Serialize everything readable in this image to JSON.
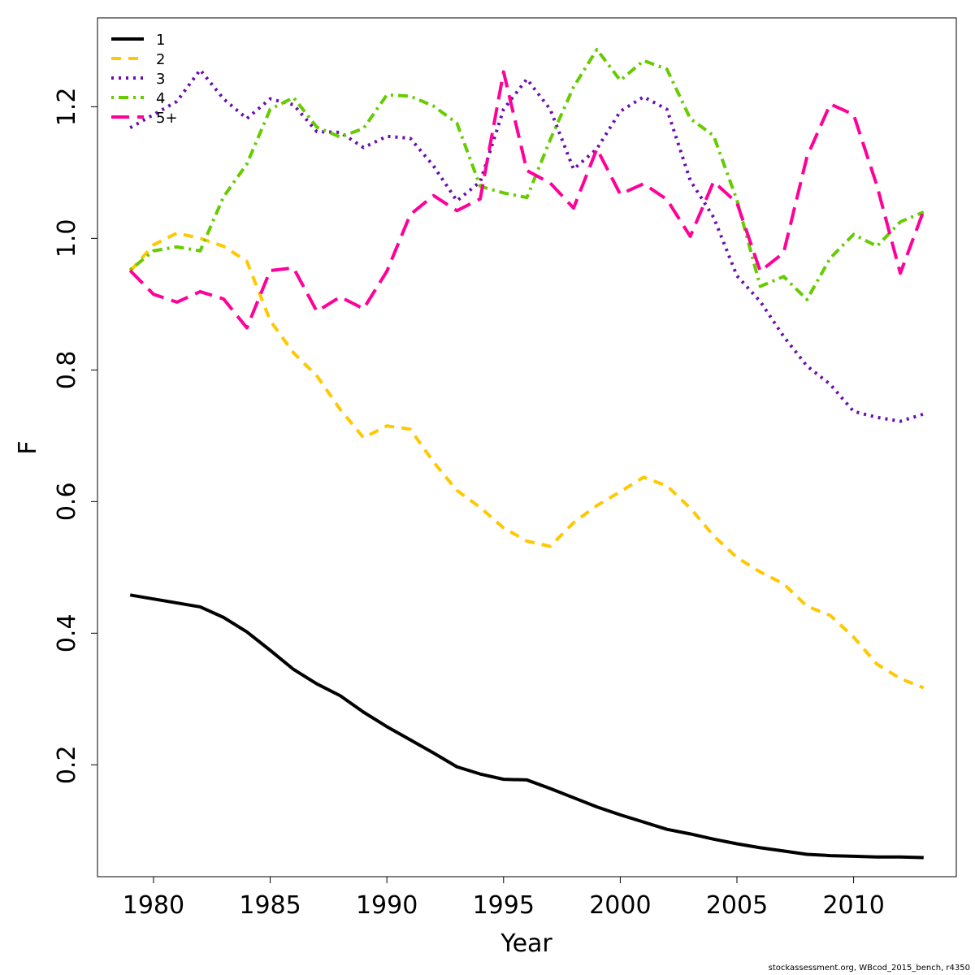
{
  "chart_data": {
    "type": "line",
    "title": "",
    "xlabel": "Year",
    "ylabel": "F",
    "xlim": [
      1977.6,
      2014.4
    ],
    "ylim": [
      0.03,
      1.335
    ],
    "x_ticks": [
      1980,
      1985,
      1990,
      1995,
      2000,
      2005,
      2010
    ],
    "y_ticks": [
      0.2,
      0.4,
      0.6,
      0.8,
      1.0,
      1.2
    ],
    "x_tick_labels": [
      "1980",
      "1985",
      "1990",
      "1995",
      "2000",
      "2005",
      "2010"
    ],
    "y_tick_labels": [
      "0.2",
      "0.4",
      "0.6",
      "0.8",
      "1.0",
      "1.2"
    ],
    "grid": false,
    "legend_position": "top-left",
    "x": [
      1979,
      1980,
      1981,
      1982,
      1983,
      1984,
      1985,
      1986,
      1987,
      1988,
      1989,
      1990,
      1991,
      1992,
      1993,
      1994,
      1995,
      1996,
      1997,
      1998,
      1999,
      2000,
      2001,
      2002,
      2003,
      2004,
      2005,
      2006,
      2007,
      2008,
      2009,
      2010,
      2011,
      2012,
      2013
    ],
    "series": [
      {
        "name": "1",
        "color": "#000000",
        "dash": "solid",
        "values": [
          0.458,
          0.452,
          0.446,
          0.44,
          0.424,
          0.402,
          0.374,
          0.345,
          0.323,
          0.305,
          0.28,
          0.258,
          0.238,
          0.218,
          0.197,
          0.186,
          0.178,
          0.177,
          0.164,
          0.15,
          0.136,
          0.124,
          0.113,
          0.102,
          0.095,
          0.087,
          0.08,
          0.074,
          0.069,
          0.064,
          0.062,
          0.061,
          0.06,
          0.06,
          0.059
        ]
      },
      {
        "name": "2",
        "color": "#FFC800",
        "dash": "dashed",
        "values": [
          0.95,
          0.99,
          1.008,
          1.0,
          0.988,
          0.965,
          0.875,
          0.826,
          0.791,
          0.74,
          0.697,
          0.715,
          0.71,
          0.66,
          0.617,
          0.591,
          0.56,
          0.54,
          0.532,
          0.568,
          0.594,
          0.615,
          0.637,
          0.624,
          0.59,
          0.548,
          0.515,
          0.493,
          0.475,
          0.441,
          0.427,
          0.394,
          0.353,
          0.331,
          0.317
        ]
      },
      {
        "name": "3",
        "color": "#6A0DAD",
        "dash": "dotted",
        "values": [
          1.168,
          1.188,
          1.208,
          1.256,
          1.212,
          1.182,
          1.212,
          1.203,
          1.162,
          1.161,
          1.138,
          1.155,
          1.152,
          1.11,
          1.057,
          1.086,
          1.196,
          1.242,
          1.196,
          1.105,
          1.136,
          1.193,
          1.215,
          1.196,
          1.088,
          1.032,
          0.943,
          0.904,
          0.851,
          0.806,
          0.778,
          0.737,
          0.728,
          0.722,
          0.733
        ]
      },
      {
        "name": "4",
        "color": "#66CC00",
        "dash": "dotdash",
        "values": [
          0.952,
          0.981,
          0.987,
          0.981,
          1.063,
          1.113,
          1.196,
          1.214,
          1.169,
          1.154,
          1.167,
          1.218,
          1.216,
          1.201,
          1.175,
          1.079,
          1.069,
          1.062,
          1.15,
          1.23,
          1.287,
          1.24,
          1.27,
          1.257,
          1.182,
          1.156,
          1.058,
          0.927,
          0.942,
          0.907,
          0.97,
          1.006,
          0.988,
          1.025,
          1.04
        ]
      },
      {
        "name": "5+",
        "color": "#FF0099",
        "dash": "longdash",
        "values": [
          0.951,
          0.915,
          0.903,
          0.919,
          0.908,
          0.864,
          0.951,
          0.955,
          0.889,
          0.911,
          0.893,
          0.95,
          1.036,
          1.065,
          1.042,
          1.06,
          1.253,
          1.103,
          1.084,
          1.046,
          1.136,
          1.067,
          1.083,
          1.059,
          1.003,
          1.086,
          1.054,
          0.95,
          0.978,
          1.124,
          1.204,
          1.188,
          1.08,
          0.947,
          1.042
        ]
      }
    ]
  },
  "footer": {
    "text": "stockassessment.org, WBcod_2015_bench, r4350"
  }
}
